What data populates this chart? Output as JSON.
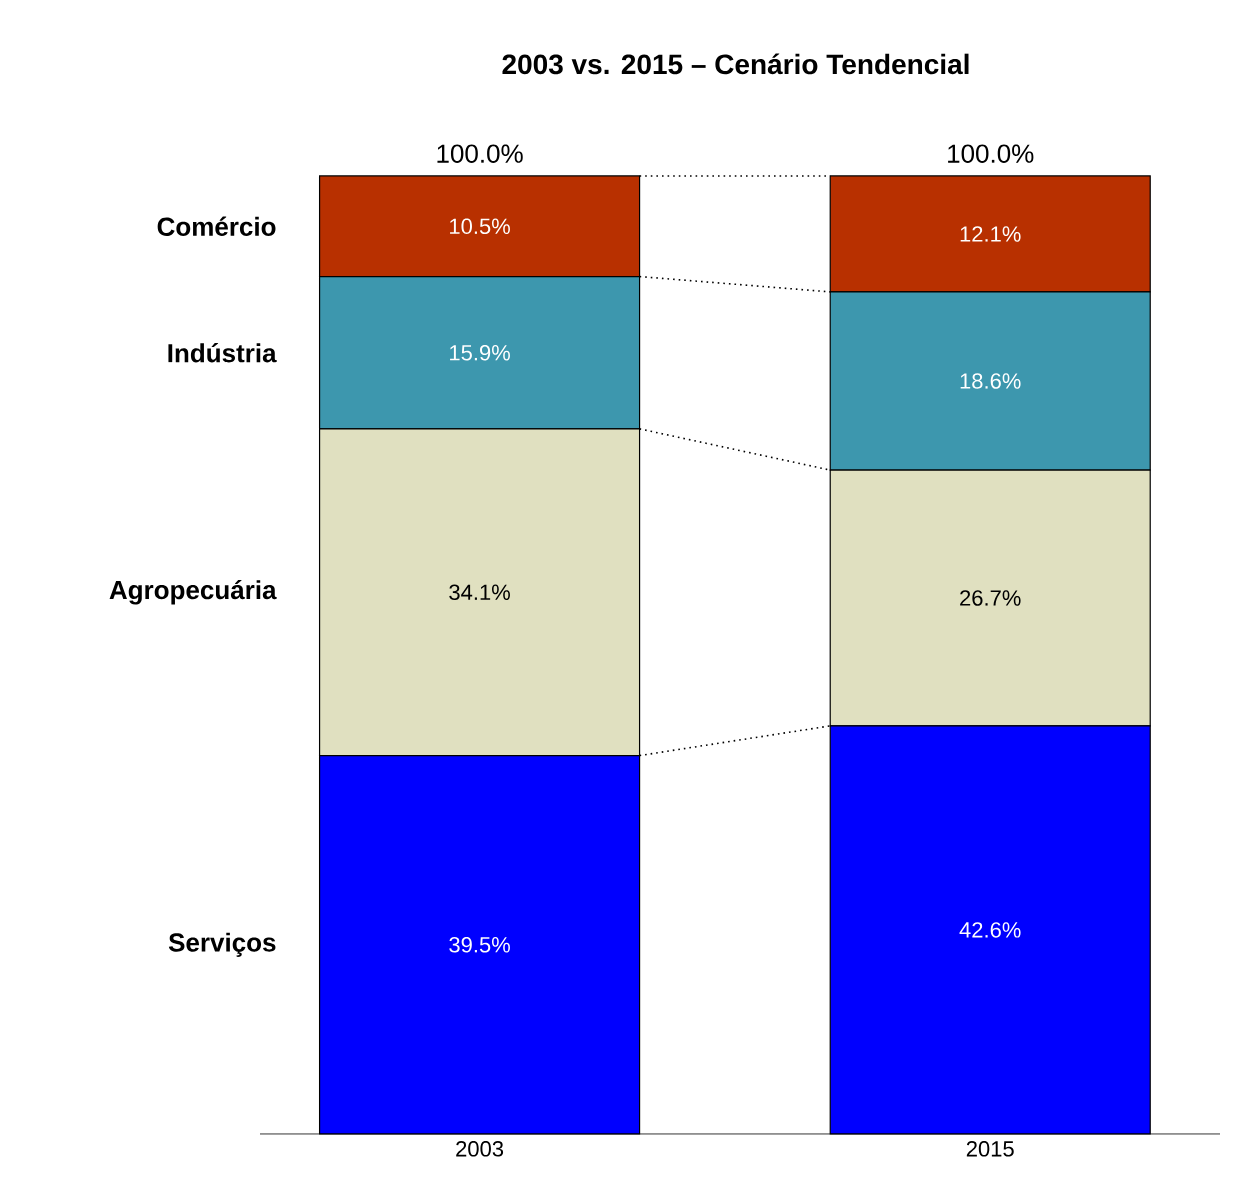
{
  "chart_data": {
    "type": "bar",
    "title": "2003 vs. 2015 – Cenário Tendencial",
    "stacked": true,
    "categories": [
      "2003",
      "2015"
    ],
    "series": [
      {
        "name": "Serviços",
        "color": "#0000ff",
        "values": [
          39.5,
          42.6
        ],
        "value_labels": [
          "39.5%",
          "42.6%"
        ]
      },
      {
        "name": "Agropecuária",
        "color": "#e0e0c0",
        "values": [
          34.1,
          26.7
        ],
        "value_labels": [
          "34.1%",
          "26.7%"
        ]
      },
      {
        "name": "Indústria",
        "color": "#3d97ae",
        "values": [
          15.9,
          18.6
        ],
        "value_labels": [
          "15.9%",
          "18.6%"
        ]
      },
      {
        "name": "Comércio",
        "color": "#b83000",
        "values": [
          10.5,
          12.1
        ],
        "value_labels": [
          "10.5%",
          "12.1%"
        ]
      }
    ],
    "totals": [
      "100.0%",
      "100.0%"
    ],
    "ylim": [
      0,
      100
    ],
    "tick_labels": "x"
  }
}
